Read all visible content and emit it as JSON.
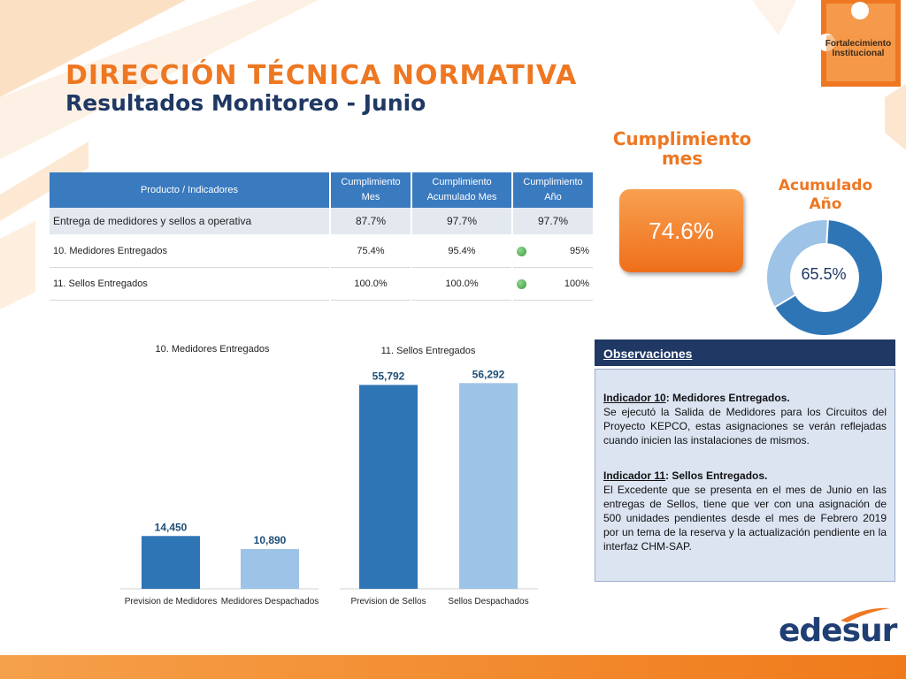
{
  "header": {
    "title": "DIRECCIÓN TÉCNICA NORMATIVA",
    "subtitle": "Resultados Monitoreo - Junio"
  },
  "logo": {
    "line1": "Fortalecimiento",
    "line2": "Institucional",
    "brand": "edesur"
  },
  "table": {
    "headers": [
      "Producto / Indicadores",
      "Cumplimiento Mes",
      "Cumplimiento Acumulado Mes",
      "Cumplimiento Año"
    ],
    "rows": [
      {
        "label": "Entrega de medidores y sellos a operativa",
        "mes": "87.7%",
        "acum": "97.7%",
        "anio": "97.7%"
      },
      {
        "label": "10. Medidores Entregados",
        "mes": "75.4%",
        "acum": "95.4%",
        "anio": "95%",
        "status": "green"
      },
      {
        "label": "11. Sellos  Entregados",
        "mes": "100.0%",
        "acum": "100.0%",
        "anio": "100%",
        "status": "green"
      }
    ]
  },
  "kpi": {
    "mes_label_1": "Cumplimiento",
    "mes_label_2": "mes",
    "mes_value": "74.6%",
    "acum_label_1": "Acumulado",
    "acum_label_2": "Año",
    "acum_value": "65.5%",
    "acum_fraction": 0.655,
    "donut_colors": {
      "filled": "#2e75b6",
      "rest": "#9dc3e6"
    }
  },
  "chart_data": [
    {
      "type": "bar",
      "title": "10. Medidores Entregados",
      "categories": [
        "Prevision de Medidores",
        "Medidores Despachados"
      ],
      "values": [
        14450,
        10890
      ],
      "data_labels": [
        "14,450",
        "10,890"
      ],
      "colors": [
        "#2e75b6",
        "#9dc3e6"
      ],
      "ylim": [
        0,
        60000
      ],
      "grid": false,
      "legend": "none"
    },
    {
      "type": "bar",
      "title": "11. Sellos Entregados",
      "categories": [
        "Prevision de Sellos",
        "Sellos Despachados"
      ],
      "values": [
        55792,
        56292
      ],
      "data_labels": [
        "55,792",
        "56,292"
      ],
      "colors": [
        "#2e75b6",
        "#9dc3e6"
      ],
      "ylim": [
        0,
        60000
      ],
      "grid": false,
      "legend": "none"
    }
  ],
  "observaciones": {
    "title": "Observaciones",
    "items": [
      {
        "indicator": "Indicador 10",
        "name": ": Medidores Entregados.",
        "text": "Se ejecutó la Salida de Medidores para los Circuitos del Proyecto KEPCO, estas asignaciones se verán reflejadas cuando inicien las instalaciones de mismos."
      },
      {
        "indicator": "Indicador 11",
        "name": ": Sellos Entregados.",
        "text": "El Excedente que se presenta en el mes de Junio en las entregas de Sellos, tiene que ver con una asignación de 500 unidades pendientes desde el mes de Febrero 2019 por un tema de la reserva y la actualización pendiente en la interfaz CHM-SAP."
      }
    ]
  },
  "colors": {
    "accent_orange": "#ee7722",
    "navy": "#1f3864",
    "table_header": "#3a7abf"
  }
}
